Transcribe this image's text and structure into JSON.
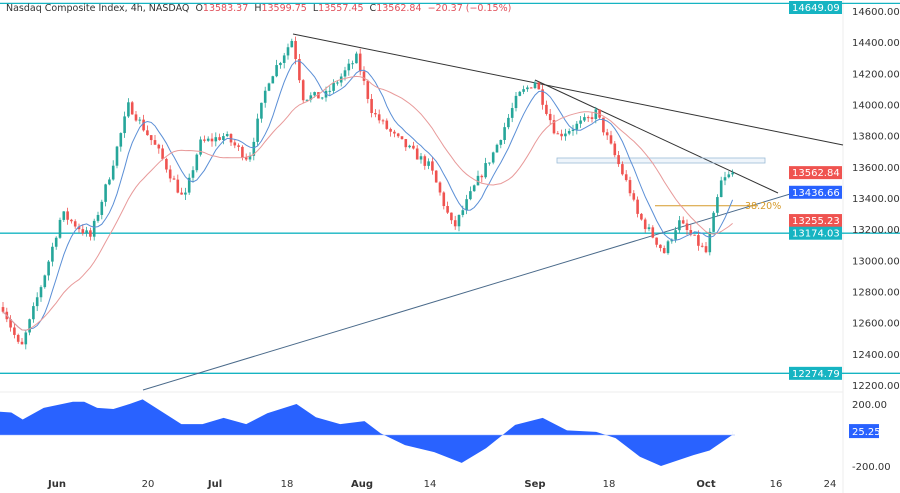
{
  "header": {
    "symbol": "Nasdaq Composite Index, 4h, NASDAQ",
    "o_label": "O",
    "open": "13583.37",
    "h_label": "H",
    "high": "13599.75",
    "l_label": "L",
    "low": "13557.45",
    "c_label": "C",
    "close": "13562.84",
    "change": "−20.37 (−0.15%)"
  },
  "colors": {
    "up": "#26a69a",
    "down": "#ef5350",
    "fast_ma": "#5b8fd6",
    "slow_ma": "#e89a9a",
    "level": "#16b4c2",
    "osc": "#2962ff",
    "fib": "#d69a2a"
  },
  "chart_data": [
    {
      "type": "candlestick",
      "title": "",
      "ylim": [
        12200,
        14600
      ],
      "y_ticks": [
        "14600.00",
        "14400.00",
        "14200.00",
        "14000.00",
        "13800.00",
        "13600.00",
        "13400.00",
        "13200.00",
        "13000.00",
        "12800.00",
        "12600.00",
        "12400.00",
        "12200.00"
      ],
      "x_ticks": [
        {
          "label": "Jun",
          "date": "06-01",
          "bold": true
        },
        {
          "label": "20",
          "date": "06-20"
        },
        {
          "label": "Jul",
          "date": "07-03",
          "bold": true
        },
        {
          "label": "18",
          "date": "07-18"
        },
        {
          "label": "Aug",
          "date": "08-01",
          "bold": true
        },
        {
          "label": "14",
          "date": "08-14"
        },
        {
          "label": "Sep",
          "date": "09-01",
          "bold": true
        },
        {
          "label": "18",
          "date": "09-18"
        },
        {
          "label": "Oct",
          "date": "10-02",
          "bold": true
        },
        {
          "label": "16",
          "date": "10-16"
        },
        {
          "label": "24",
          "date": "10-24"
        }
      ],
      "close_path": [
        [
          "05-22",
          12700
        ],
        [
          "05-25",
          12420
        ],
        [
          "05-30",
          12950
        ],
        [
          "06-02",
          13300
        ],
        [
          "06-08",
          13150
        ],
        [
          "06-12",
          13550
        ],
        [
          "06-16",
          14000
        ],
        [
          "06-22",
          13700
        ],
        [
          "06-27",
          13380
        ],
        [
          "06-30",
          13750
        ],
        [
          "07-05",
          13800
        ],
        [
          "07-10",
          13650
        ],
        [
          "07-14",
          14150
        ],
        [
          "07-19",
          14420
        ],
        [
          "07-21",
          14050
        ],
        [
          "07-25",
          14050
        ],
        [
          "07-31",
          14300
        ],
        [
          "08-03",
          13950
        ],
        [
          "08-07",
          13800
        ],
        [
          "08-14",
          13600
        ],
        [
          "08-18",
          13200
        ],
        [
          "08-22",
          13500
        ],
        [
          "08-25",
          13700
        ],
        [
          "08-29",
          14050
        ],
        [
          "09-01",
          14150
        ],
        [
          "09-06",
          13800
        ],
        [
          "09-13",
          13900
        ],
        [
          "09-15",
          13950
        ],
        [
          "09-21",
          13450
        ],
        [
          "09-22",
          13300
        ],
        [
          "09-26",
          13050
        ],
        [
          "09-28",
          13250
        ],
        [
          "10-02",
          13050
        ],
        [
          "10-04",
          13350
        ],
        [
          "10-05",
          13500
        ],
        [
          "10-06",
          13562.84
        ]
      ],
      "price_tags": [
        {
          "label": "14649.09",
          "value": 14649.09,
          "color": "#16b4c2"
        },
        {
          "label": "13562.84",
          "value": 13562.84,
          "color": "#ef5350"
        },
        {
          "label": "13436.66",
          "value": 13436.66,
          "color": "#2962ff"
        },
        {
          "label": "13255.23",
          "value": 13255.23,
          "color": "#ef5350"
        },
        {
          "label": "13174.03",
          "value": 13174.03,
          "color": "#16b4c2"
        },
        {
          "label": "12274.79",
          "value": 12274.79,
          "color": "#16b4c2"
        }
      ],
      "horizontal_levels": [
        14649.09,
        13174.03,
        12274.79
      ],
      "fib_label": "38.20%",
      "fib_value": 13350
    },
    {
      "type": "area",
      "ylim": [
        -250,
        250
      ],
      "y_ticks": [
        "200.00",
        "-200.00"
      ],
      "last_value_tag": "25.25",
      "last_value": 25.25,
      "values_by_date": [
        [
          "05-22",
          150
        ],
        [
          "05-23",
          145
        ],
        [
          "05-25",
          100
        ],
        [
          "05-28",
          175
        ],
        [
          "05-31",
          215
        ],
        [
          "06-02",
          215
        ],
        [
          "06-05",
          175
        ],
        [
          "06-07",
          168
        ],
        [
          "06-09",
          200
        ],
        [
          "06-12",
          230
        ],
        [
          "06-15",
          150
        ],
        [
          "06-19",
          70
        ],
        [
          "06-22",
          70
        ],
        [
          "06-26",
          110
        ],
        [
          "06-28",
          70
        ],
        [
          "07-02",
          140
        ],
        [
          "07-06",
          200
        ],
        [
          "07-10",
          115
        ],
        [
          "07-14",
          70
        ],
        [
          "07-18",
          90
        ],
        [
          "07-20",
          10
        ],
        [
          "07-25",
          -65
        ],
        [
          "07-29",
          -110
        ],
        [
          "08-03",
          -180
        ],
        [
          "08-07",
          -85
        ],
        [
          "08-11",
          65
        ],
        [
          "08-16",
          110
        ],
        [
          "08-19",
          30
        ],
        [
          "08-22",
          20
        ],
        [
          "08-25",
          -20
        ],
        [
          "08-29",
          -140
        ],
        [
          "09-01",
          -200
        ],
        [
          "09-07",
          -130
        ],
        [
          "09-10",
          -100
        ],
        [
          "09-13",
          0
        ],
        [
          "09-12",
          25
        ]
      ]
    }
  ]
}
